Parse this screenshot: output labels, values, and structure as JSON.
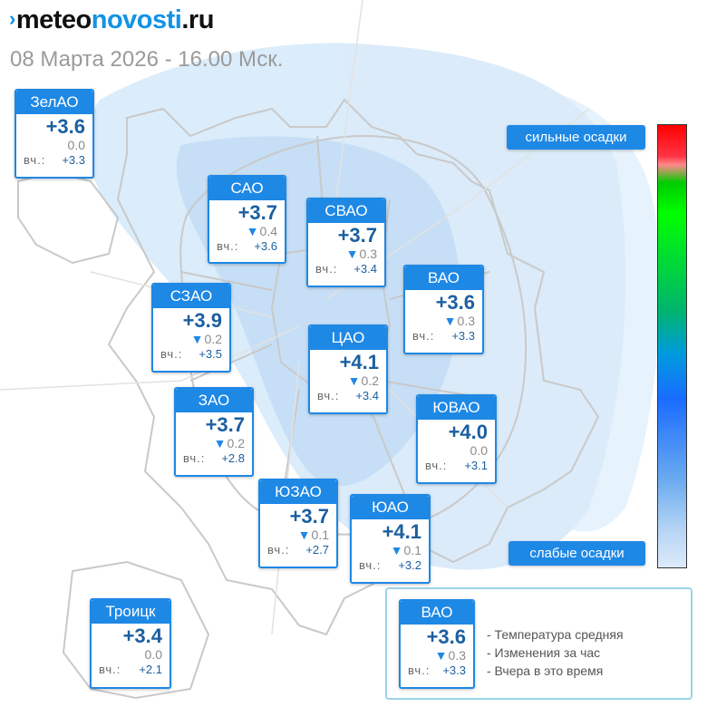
{
  "logo": {
    "part1": "meteo",
    "part2": "novosti",
    "part3": ".ru"
  },
  "date_label": "08 Марта 2026 - 16.00 Мск.",
  "scale": {
    "top_label": "сильные осадки",
    "bottom_label": "слабые осадки"
  },
  "yesterday_prefix": "вч.:",
  "districts": [
    {
      "name": "ЗелАО",
      "temp": "+3.6",
      "change": "0.0",
      "trend": "none",
      "yesterday": "+3.3"
    },
    {
      "name": "САО",
      "temp": "+3.7",
      "change": "-0.4",
      "trend": "down",
      "yesterday": "+3.6"
    },
    {
      "name": "СВАО",
      "temp": "+3.7",
      "change": "-0.3",
      "trend": "down",
      "yesterday": "+3.4"
    },
    {
      "name": "ВАО",
      "temp": "+3.6",
      "change": "-0.3",
      "trend": "down",
      "yesterday": "+3.3"
    },
    {
      "name": "СЗАО",
      "temp": "+3.9",
      "change": "-0.2",
      "trend": "down",
      "yesterday": "+3.5"
    },
    {
      "name": "ЦАО",
      "temp": "+4.1",
      "change": "-0.2",
      "trend": "down",
      "yesterday": "+3.4"
    },
    {
      "name": "ЗАО",
      "temp": "+3.7",
      "change": "-0.2",
      "trend": "down",
      "yesterday": "+2.8"
    },
    {
      "name": "ЮВАО",
      "temp": "+4.0",
      "change": "0.0",
      "trend": "none",
      "yesterday": "+3.1"
    },
    {
      "name": "ЮЗАО",
      "temp": "+3.7",
      "change": "-0.1",
      "trend": "down",
      "yesterday": "+2.7"
    },
    {
      "name": "ЮАО",
      "temp": "+4.1",
      "change": "-0.1",
      "trend": "down",
      "yesterday": "+3.2"
    },
    {
      "name": "Троицк",
      "temp": "+3.4",
      "change": "0.0",
      "trend": "none",
      "yesterday": "+2.1"
    }
  ],
  "legend": {
    "name": "ВАО",
    "temp": "+3.6",
    "change": "-0.3",
    "trend": "down",
    "yesterday": "+3.3",
    "items": [
      "- Температура средняя",
      "- Изменения за час",
      "- Вчера в это время"
    ]
  },
  "colors": {
    "accent": "#1e88e5",
    "temp_text": "#1b5fa0",
    "precip": "#bfdcf5"
  }
}
